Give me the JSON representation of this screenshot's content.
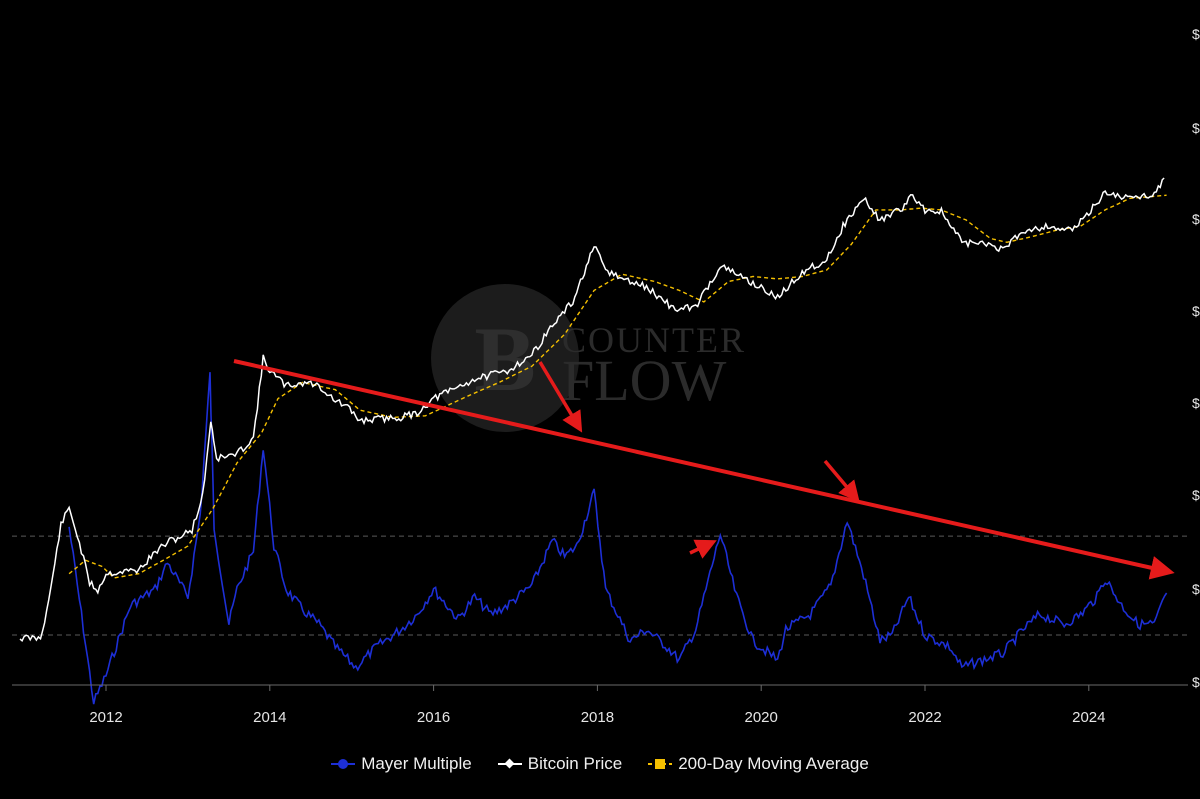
{
  "chart_data": {
    "type": "line",
    "title": "",
    "xlabel": "",
    "ylabel": "",
    "x_ticks": [
      "2012",
      "2014",
      "2016",
      "2018",
      "2020",
      "2022",
      "2024"
    ],
    "xlim": [
      2010.9,
      2025.2
    ],
    "y_axis_right": {
      "scale": "log",
      "range": [
        1,
        200000
      ]
    },
    "grid": false,
    "legend_position": "bottom-center",
    "dashed_reference_lines": [
      2.4,
      1.0
    ],
    "series": [
      {
        "name": "Mayer Multiple",
        "color": "#1d2fd6",
        "axis": "mayer",
        "anchors": [
          [
            2011.55,
            2.6
          ],
          [
            2011.7,
            1.2
          ],
          [
            2011.85,
            0.55
          ],
          [
            2012.0,
            0.7
          ],
          [
            2012.3,
            1.3
          ],
          [
            2012.6,
            1.5
          ],
          [
            2012.75,
            1.9
          ],
          [
            2013.0,
            1.4
          ],
          [
            2013.15,
            2.9
          ],
          [
            2013.27,
            10.0
          ],
          [
            2013.32,
            2.6
          ],
          [
            2013.5,
            1.1
          ],
          [
            2013.6,
            1.5
          ],
          [
            2013.8,
            2.1
          ],
          [
            2013.92,
            5.3
          ],
          [
            2014.05,
            2.2
          ],
          [
            2014.2,
            1.5
          ],
          [
            2014.4,
            1.25
          ],
          [
            2014.6,
            1.1
          ],
          [
            2014.8,
            0.9
          ],
          [
            2015.05,
            0.75
          ],
          [
            2015.3,
            0.9
          ],
          [
            2015.6,
            1.05
          ],
          [
            2015.8,
            1.2
          ],
          [
            2016.0,
            1.5
          ],
          [
            2016.3,
            1.15
          ],
          [
            2016.5,
            1.4
          ],
          [
            2016.7,
            1.2
          ],
          [
            2016.9,
            1.3
          ],
          [
            2017.2,
            1.55
          ],
          [
            2017.45,
            2.3
          ],
          [
            2017.6,
            2.0
          ],
          [
            2017.75,
            2.2
          ],
          [
            2017.96,
            3.55
          ],
          [
            2018.1,
            1.5
          ],
          [
            2018.4,
            0.95
          ],
          [
            2018.6,
            1.05
          ],
          [
            2018.85,
            0.9
          ],
          [
            2019.0,
            0.8
          ],
          [
            2019.2,
            1.05
          ],
          [
            2019.5,
            2.45
          ],
          [
            2019.7,
            1.4
          ],
          [
            2019.9,
            0.95
          ],
          [
            2020.2,
            0.8
          ],
          [
            2020.3,
            1.05
          ],
          [
            2020.6,
            1.2
          ],
          [
            2020.85,
            1.55
          ],
          [
            2021.05,
            2.75
          ],
          [
            2021.25,
            1.7
          ],
          [
            2021.45,
            0.95
          ],
          [
            2021.6,
            1.0
          ],
          [
            2021.8,
            1.4
          ],
          [
            2022.0,
            1.0
          ],
          [
            2022.3,
            0.9
          ],
          [
            2022.45,
            0.75
          ],
          [
            2022.7,
            0.8
          ],
          [
            2022.95,
            0.85
          ],
          [
            2023.2,
            1.05
          ],
          [
            2023.4,
            1.2
          ],
          [
            2023.7,
            1.1
          ],
          [
            2023.9,
            1.2
          ],
          [
            2024.1,
            1.4
          ],
          [
            2024.2,
            1.65
          ],
          [
            2024.4,
            1.3
          ],
          [
            2024.6,
            1.1
          ],
          [
            2024.8,
            1.1
          ],
          [
            2024.95,
            1.45
          ]
        ]
      },
      {
        "name": "Bitcoin Price",
        "color": "#ffffff",
        "axis": "price",
        "anchors": [
          [
            2010.95,
            1
          ],
          [
            2011.2,
            1.0
          ],
          [
            2011.3,
            2.5
          ],
          [
            2011.45,
            17
          ],
          [
            2011.55,
            26
          ],
          [
            2011.65,
            13
          ],
          [
            2011.8,
            4
          ],
          [
            2011.9,
            3.3
          ],
          [
            2012.0,
            5
          ],
          [
            2012.15,
            5.2
          ],
          [
            2012.4,
            5.5
          ],
          [
            2012.6,
            8.5
          ],
          [
            2012.75,
            11
          ],
          [
            2012.9,
            12.5
          ],
          [
            2013.05,
            15
          ],
          [
            2013.18,
            35
          ],
          [
            2013.28,
            230
          ],
          [
            2013.35,
            90
          ],
          [
            2013.5,
            95
          ],
          [
            2013.6,
            100
          ],
          [
            2013.8,
            150
          ],
          [
            2013.92,
            1100
          ],
          [
            2014.0,
            800
          ],
          [
            2014.2,
            550
          ],
          [
            2014.45,
            600
          ],
          [
            2014.6,
            550
          ],
          [
            2014.8,
            380
          ],
          [
            2014.95,
            320
          ],
          [
            2015.1,
            230
          ],
          [
            2015.3,
            240
          ],
          [
            2015.6,
            250
          ],
          [
            2015.8,
            280
          ],
          [
            2016.0,
            400
          ],
          [
            2016.5,
            650
          ],
          [
            2016.9,
            800
          ],
          [
            2017.2,
            1200
          ],
          [
            2017.45,
            2500
          ],
          [
            2017.7,
            4500
          ],
          [
            2017.96,
            18000
          ],
          [
            2018.1,
            10000
          ],
          [
            2018.3,
            8000
          ],
          [
            2018.6,
            6500
          ],
          [
            2018.9,
            4000
          ],
          [
            2019.0,
            3700
          ],
          [
            2019.2,
            4000
          ],
          [
            2019.5,
            11000
          ],
          [
            2019.7,
            9000
          ],
          [
            2019.9,
            7200
          ],
          [
            2020.2,
            5000
          ],
          [
            2020.5,
            9500
          ],
          [
            2020.8,
            13000
          ],
          [
            2021.0,
            30000
          ],
          [
            2021.25,
            60000
          ],
          [
            2021.45,
            35000
          ],
          [
            2021.7,
            45000
          ],
          [
            2021.85,
            65000
          ],
          [
            2022.0,
            45000
          ],
          [
            2022.2,
            43000
          ],
          [
            2022.45,
            20000
          ],
          [
            2022.8,
            19000
          ],
          [
            2022.95,
            16500
          ],
          [
            2023.2,
            27000
          ],
          [
            2023.5,
            30000
          ],
          [
            2023.8,
            27000
          ],
          [
            2024.0,
            42000
          ],
          [
            2024.2,
            70000
          ],
          [
            2024.5,
            60000
          ],
          [
            2024.8,
            68000
          ],
          [
            2024.92,
            100000
          ]
        ]
      },
      {
        "name": "200-Day Moving Average",
        "color": "#f5c000",
        "axis": "price",
        "anchors": [
          [
            2011.55,
            5
          ],
          [
            2011.75,
            7
          ],
          [
            2011.95,
            6
          ],
          [
            2012.1,
            4.5
          ],
          [
            2012.4,
            5
          ],
          [
            2012.7,
            7
          ],
          [
            2013.0,
            10
          ],
          [
            2013.3,
            25
          ],
          [
            2013.6,
            80
          ],
          [
            2013.9,
            170
          ],
          [
            2014.1,
            400
          ],
          [
            2014.4,
            600
          ],
          [
            2014.8,
            500
          ],
          [
            2015.1,
            300
          ],
          [
            2015.5,
            250
          ],
          [
            2015.9,
            260
          ],
          [
            2016.4,
            420
          ],
          [
            2016.8,
            600
          ],
          [
            2017.2,
            900
          ],
          [
            2017.6,
            2000
          ],
          [
            2017.96,
            6000
          ],
          [
            2018.3,
            9000
          ],
          [
            2018.7,
            7500
          ],
          [
            2019.0,
            6000
          ],
          [
            2019.3,
            4500
          ],
          [
            2019.6,
            7500
          ],
          [
            2019.9,
            8500
          ],
          [
            2020.2,
            8000
          ],
          [
            2020.5,
            8500
          ],
          [
            2020.8,
            10000
          ],
          [
            2021.1,
            19000
          ],
          [
            2021.4,
            45000
          ],
          [
            2021.7,
            45000
          ],
          [
            2021.95,
            47000
          ],
          [
            2022.2,
            45000
          ],
          [
            2022.5,
            35000
          ],
          [
            2022.8,
            22000
          ],
          [
            2023.0,
            20000
          ],
          [
            2023.3,
            23000
          ],
          [
            2023.6,
            27000
          ],
          [
            2023.9,
            30000
          ],
          [
            2024.2,
            45000
          ],
          [
            2024.5,
            60000
          ],
          [
            2024.95,
            65000
          ]
        ]
      }
    ],
    "annotations": [
      {
        "type": "trendline",
        "color": "#e51b1b"
      },
      {
        "type": "arrow",
        "color": "#e51b1b",
        "points_to": "2017-12 peak"
      },
      {
        "type": "arrow",
        "color": "#e51b1b",
        "points_to": "2019-06 peak"
      },
      {
        "type": "arrow",
        "color": "#e51b1b",
        "points_to": "2021 peak"
      }
    ]
  },
  "legend": {
    "items": [
      {
        "label": "Mayer Multiple",
        "color": "#1d2fd6"
      },
      {
        "label": "Bitcoin Price",
        "color": "#ffffff"
      },
      {
        "label": "200-Day Moving Average",
        "color": "#f5c000"
      }
    ]
  },
  "watermark": {
    "line1": "COUNTER",
    "line2": "FLOW",
    "icon": "bitcoin-logo-icon"
  },
  "right_axis_tick_labels": [
    "$",
    "$",
    "$",
    "$",
    "$",
    "$",
    "$",
    "$"
  ]
}
